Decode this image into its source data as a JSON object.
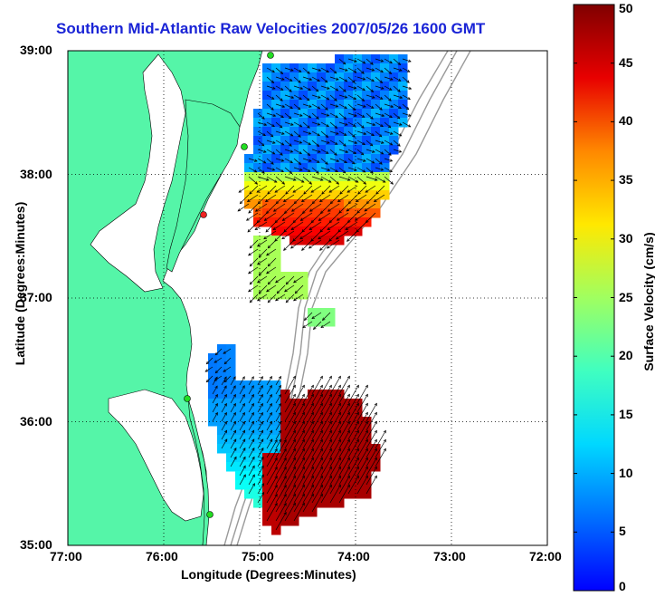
{
  "title": "Southern Mid-Atlantic Raw Velocities 2007/05/26 1600 GMT",
  "xlabel": "Longitude (Degrees:Minutes)",
  "ylabel": "Latitude (Degrees:Minutes)",
  "colorbar": {
    "label": "Surface Velocity (cm/s)",
    "ticks": [
      "0",
      "5",
      "10",
      "15",
      "20",
      "25",
      "30",
      "35",
      "40",
      "45",
      "50"
    ],
    "range": [
      0,
      50
    ],
    "colormap": "jet"
  },
  "map": {
    "lon_ticks": [
      "77:00",
      "76:00",
      "75:00",
      "74:00",
      "73:00",
      "72:00"
    ],
    "lat_ticks": [
      "39:00",
      "38:00",
      "37:00",
      "36:00",
      "35:00"
    ],
    "lon_range": [
      -77,
      -72
    ],
    "lat_range": [
      35,
      39
    ],
    "grid": true,
    "land_color": "#55f5a8",
    "water_color": "#ffffff",
    "bathymetry_color": "#9a9a9a"
  },
  "chart_data": {
    "type": "heatmap",
    "title": "Southern Mid-Atlantic Raw Velocities 2007/05/26 1600 GMT",
    "xlabel": "Longitude (Degrees:Minutes)",
    "ylabel": "Latitude (Degrees:Minutes)",
    "xlim": [
      -77,
      -72
    ],
    "ylim": [
      35,
      39
    ],
    "value_range": [
      0,
      50
    ],
    "unit": "cm/s",
    "grid": true
  }
}
